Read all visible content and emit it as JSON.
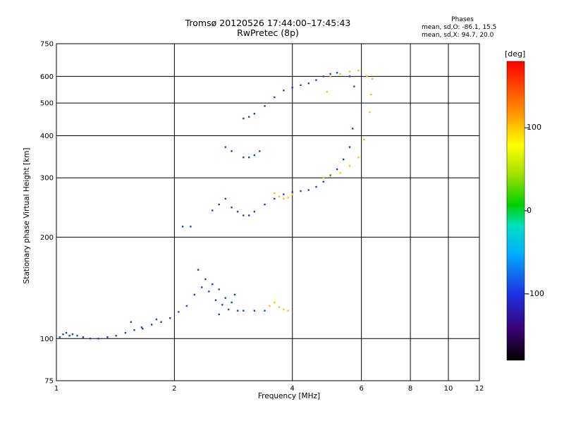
{
  "header": {
    "title": "Tromsø 20120526 17:44:00–17:45:43",
    "subtitle": "RwPretec (8p)",
    "phases_title": "Phases",
    "phases_line1": "mean, sd,O: -86.1, 15.5",
    "phases_line2": "mean, sd,X:  94.7, 20.0"
  },
  "colorbar": {
    "unit": "[deg]",
    "ticks": [
      {
        "value": 100,
        "label": "100"
      },
      {
        "value": 0,
        "label": "0"
      },
      {
        "value": -100,
        "label": "-100"
      }
    ],
    "range": [
      -180,
      180
    ]
  },
  "chart_data": {
    "type": "scatter",
    "xlabel": "Frequency [MHz]",
    "ylabel": "Stationary phase Virtual Height [km]",
    "x_scale": "log",
    "y_scale": "log",
    "xlim": [
      1,
      12
    ],
    "ylim": [
      75,
      750
    ],
    "x_ticks": [
      1,
      2,
      4,
      6,
      8,
      10,
      12
    ],
    "y_ticks": [
      75,
      100,
      200,
      300,
      400,
      500,
      600,
      750
    ],
    "grid": true,
    "series": [
      {
        "mode": "O",
        "color": "#1e3cd2",
        "points": [
          [
            1.02,
            101
          ],
          [
            1.04,
            103
          ],
          [
            1.06,
            104
          ],
          [
            1.08,
            102
          ],
          [
            1.1,
            103
          ],
          [
            1.13,
            102
          ],
          [
            1.17,
            101
          ],
          [
            1.22,
            100
          ],
          [
            1.28,
            100
          ],
          [
            1.35,
            101
          ],
          [
            1.42,
            102
          ],
          [
            1.5,
            104
          ],
          [
            1.58,
            106
          ],
          [
            1.66,
            107
          ],
          [
            1.75,
            110
          ],
          [
            1.85,
            112
          ],
          [
            1.95,
            115
          ],
          [
            2.05,
            120
          ],
          [
            2.15,
            125
          ],
          [
            2.25,
            135
          ],
          [
            2.35,
            142
          ],
          [
            2.45,
            138
          ],
          [
            2.55,
            130
          ],
          [
            2.65,
            126
          ],
          [
            2.75,
            122
          ],
          [
            2.9,
            121
          ],
          [
            3.0,
            121
          ],
          [
            3.2,
            121
          ],
          [
            3.4,
            121
          ],
          [
            1.55,
            112
          ],
          [
            1.65,
            108
          ],
          [
            1.8,
            114
          ],
          [
            2.4,
            150
          ],
          [
            2.5,
            145
          ],
          [
            2.6,
            140
          ],
          [
            2.7,
            132
          ],
          [
            2.8,
            128
          ],
          [
            2.85,
            135
          ],
          [
            2.6,
            118
          ],
          [
            2.3,
            160
          ],
          [
            2.1,
            215
          ],
          [
            2.2,
            215
          ],
          [
            2.5,
            240
          ],
          [
            2.6,
            250
          ],
          [
            2.7,
            260
          ],
          [
            2.8,
            245
          ],
          [
            2.9,
            238
          ],
          [
            3.0,
            232
          ],
          [
            3.1,
            232
          ],
          [
            3.2,
            238
          ],
          [
            3.4,
            250
          ],
          [
            3.6,
            260
          ],
          [
            3.8,
            268
          ],
          [
            4.0,
            272
          ],
          [
            4.2,
            274
          ],
          [
            4.4,
            276
          ],
          [
            4.6,
            282
          ],
          [
            4.8,
            292
          ],
          [
            5.0,
            305
          ],
          [
            5.2,
            318
          ],
          [
            5.4,
            340
          ],
          [
            5.6,
            370
          ],
          [
            5.7,
            420
          ],
          [
            3.0,
            345
          ],
          [
            3.1,
            345
          ],
          [
            3.2,
            350
          ],
          [
            3.3,
            360
          ],
          [
            2.8,
            360
          ],
          [
            2.7,
            370
          ],
          [
            3.0,
            450
          ],
          [
            3.1,
            455
          ],
          [
            3.2,
            465
          ],
          [
            3.4,
            490
          ],
          [
            3.6,
            520
          ],
          [
            3.8,
            545
          ],
          [
            4.0,
            556
          ],
          [
            4.2,
            565
          ],
          [
            4.4,
            572
          ],
          [
            4.6,
            585
          ],
          [
            4.8,
            600
          ],
          [
            5.0,
            610
          ],
          [
            5.2,
            615
          ],
          [
            5.6,
            600
          ],
          [
            5.75,
            560
          ]
        ]
      },
      {
        "mode": "X",
        "color": "#f0c800",
        "points": [
          [
            3.5,
            125
          ],
          [
            3.6,
            128
          ],
          [
            3.7,
            124
          ],
          [
            3.8,
            122
          ],
          [
            3.9,
            121
          ],
          [
            3.6,
            270
          ],
          [
            3.7,
            264
          ],
          [
            3.8,
            260
          ],
          [
            3.9,
            262
          ],
          [
            4.0,
            268
          ],
          [
            4.8,
            300
          ],
          [
            5.0,
            303
          ],
          [
            5.3,
            310
          ],
          [
            5.6,
            325
          ],
          [
            5.9,
            345
          ],
          [
            6.1,
            390
          ],
          [
            6.3,
            470
          ],
          [
            6.35,
            530
          ],
          [
            4.9,
            540
          ],
          [
            5.0,
            600
          ],
          [
            5.3,
            610
          ],
          [
            5.6,
            620
          ],
          [
            5.9,
            625
          ],
          [
            6.2,
            600
          ],
          [
            6.4,
            590
          ]
        ]
      }
    ]
  }
}
